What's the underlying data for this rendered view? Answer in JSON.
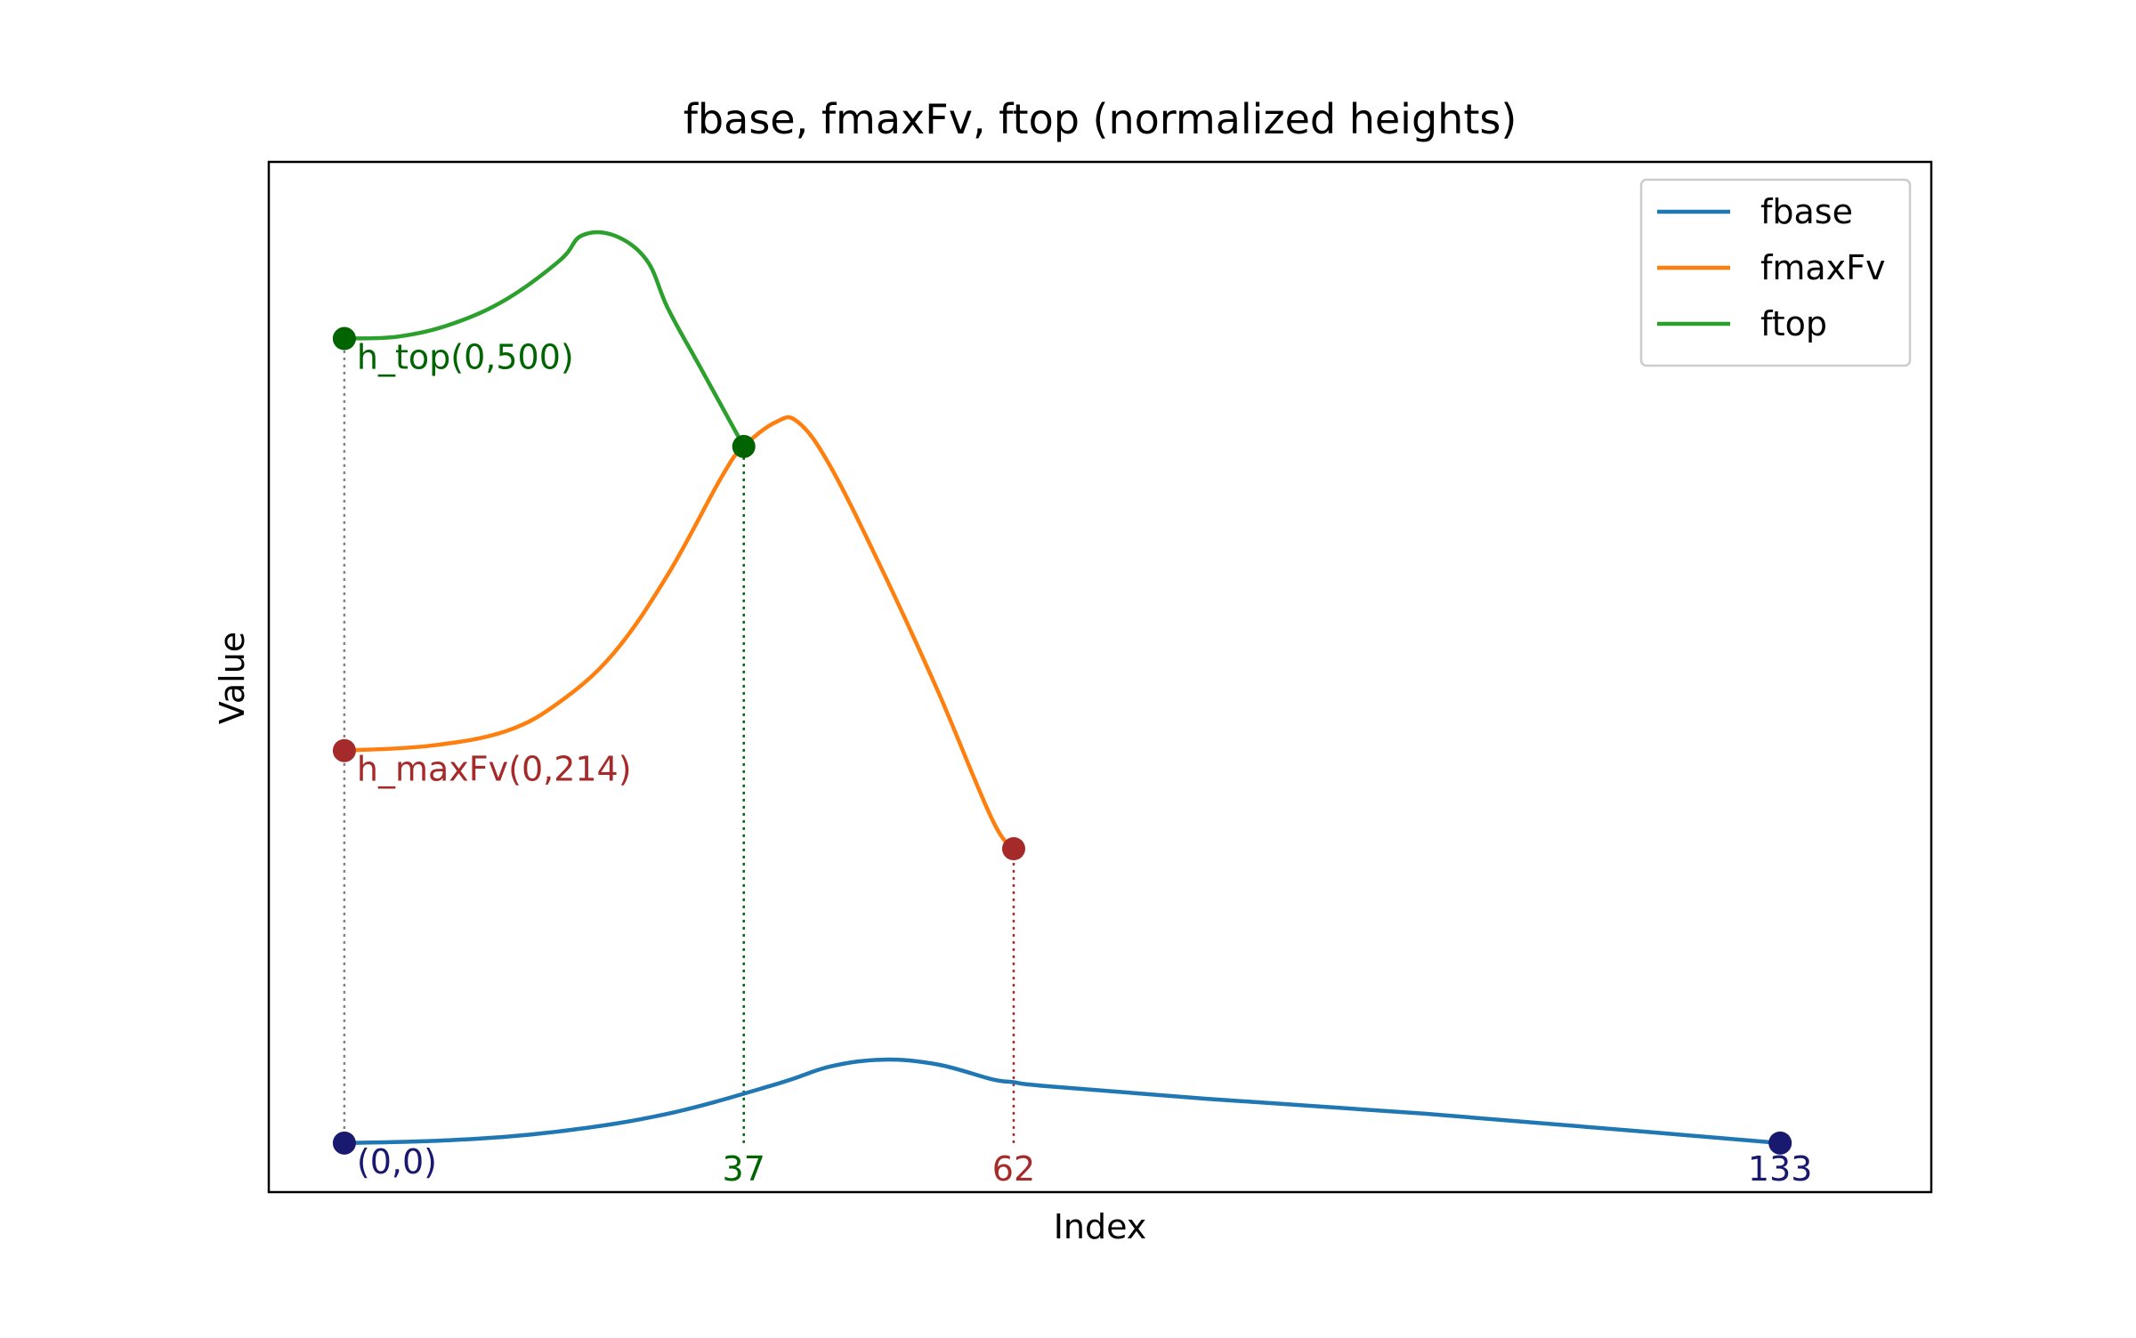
{
  "chart_data": {
    "type": "line",
    "title": "fbase, fmaxFv, ftop (normalized heights)",
    "xlabel": "Index",
    "ylabel": "Value",
    "xlim": [
      -7,
      147
    ],
    "ylim": [
      -0.05,
      1.0
    ],
    "grid": false,
    "legend_position": "top-right",
    "series": [
      {
        "name": "fbase",
        "color": "#1f77b4",
        "x": [
          0,
          10,
          20,
          30,
          40,
          45,
          50,
          55,
          60,
          62,
          65,
          80,
          100,
          120,
          133
        ],
        "y": [
          0.0,
          0.003,
          0.012,
          0.03,
          0.06,
          0.078,
          0.085,
          0.08,
          0.065,
          0.062,
          0.058,
          0.045,
          0.03,
          0.012,
          0.0
        ]
      },
      {
        "name": "fmaxFv",
        "color": "#ff7f0e",
        "x": [
          0,
          8,
          15,
          20,
          25,
          30,
          35,
          37,
          40,
          42,
          45,
          50,
          55,
          60,
          62
        ],
        "y": [
          0.4,
          0.405,
          0.42,
          0.45,
          0.5,
          0.58,
          0.68,
          0.71,
          0.735,
          0.735,
          0.69,
          0.58,
          0.46,
          0.33,
          0.3
        ]
      },
      {
        "name": "ftop",
        "color": "#2ca02c",
        "x": [
          0,
          5,
          10,
          15,
          20,
          22,
          25,
          28,
          30,
          33,
          37
        ],
        "y": [
          0.82,
          0.822,
          0.835,
          0.86,
          0.9,
          0.925,
          0.925,
          0.9,
          0.85,
          0.79,
          0.71
        ]
      }
    ],
    "markers": [
      {
        "x": 0,
        "y": 0.82,
        "color": "#006400"
      },
      {
        "x": 37,
        "y": 0.71,
        "color": "#006400"
      },
      {
        "x": 0,
        "y": 0.4,
        "color": "#a52a2a"
      },
      {
        "x": 62,
        "y": 0.3,
        "color": "#a52a2a"
      },
      {
        "x": 0,
        "y": 0.0,
        "color": "#191970"
      },
      {
        "x": 133,
        "y": 0.0,
        "color": "#191970"
      }
    ],
    "guide_lines": [
      {
        "x": 0,
        "y_from": 0.0,
        "y_to": 0.82,
        "color": "#808080"
      },
      {
        "x": 37,
        "y_from": 0.0,
        "y_to": 0.71,
        "color": "#006400"
      },
      {
        "x": 62,
        "y_from": 0.0,
        "y_to": 0.3,
        "color": "#a52a2a"
      }
    ],
    "annotations": [
      {
        "text": "h_top(0,500)",
        "x": 0,
        "y": 0.82,
        "anchor": "below-right",
        "color": "#006400"
      },
      {
        "text": "h_maxFv(0,214)",
        "x": 0,
        "y": 0.4,
        "anchor": "below-right",
        "color": "#a52a2a"
      },
      {
        "text": "(0,0)",
        "x": 0,
        "y": 0.0,
        "anchor": "below-right",
        "color": "#191970"
      },
      {
        "text": "37",
        "x": 37,
        "y": 0.0,
        "anchor": "below-center",
        "color": "#006400"
      },
      {
        "text": "62",
        "x": 62,
        "y": 0.0,
        "anchor": "below-center",
        "color": "#a52a2a"
      },
      {
        "text": "133",
        "x": 133,
        "y": 0.0,
        "anchor": "below-center",
        "color": "#191970"
      }
    ]
  }
}
